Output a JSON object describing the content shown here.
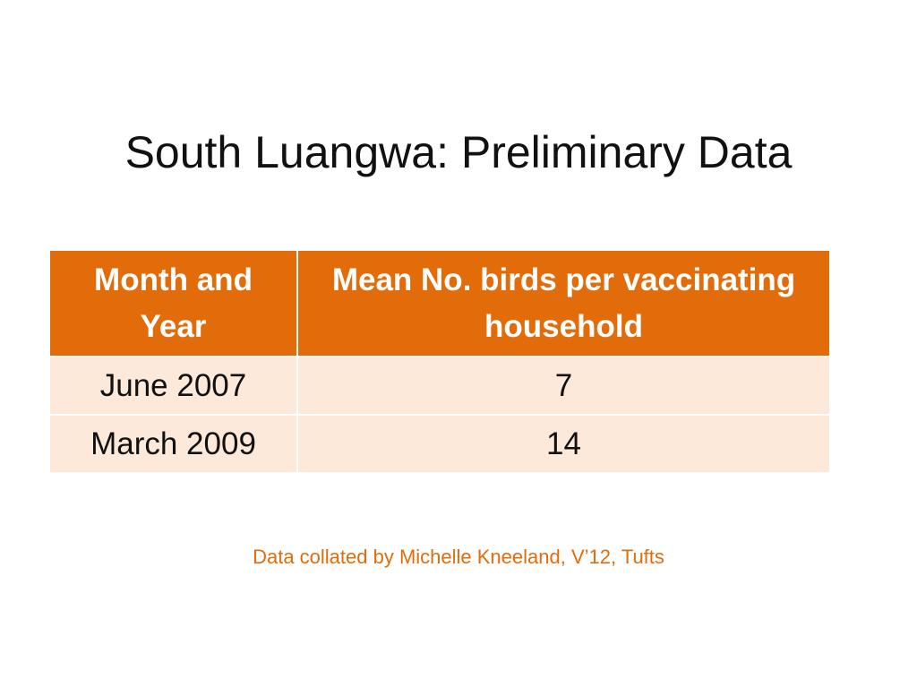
{
  "slide": {
    "title": "South Luangwa: Preliminary Data",
    "footnote": "Data collated by Michelle Kneeland, V’12, Tufts"
  },
  "table": {
    "headers": [
      "Month and Year",
      "Mean No. birds per vaccinating household"
    ],
    "rows": [
      [
        "June 2007",
        "7"
      ],
      [
        "March 2009",
        "14"
      ]
    ]
  },
  "colors": {
    "header_fill": "#E36C0A",
    "row_fill": "#FCE9DA",
    "footnote_text": "#E36C0A"
  }
}
